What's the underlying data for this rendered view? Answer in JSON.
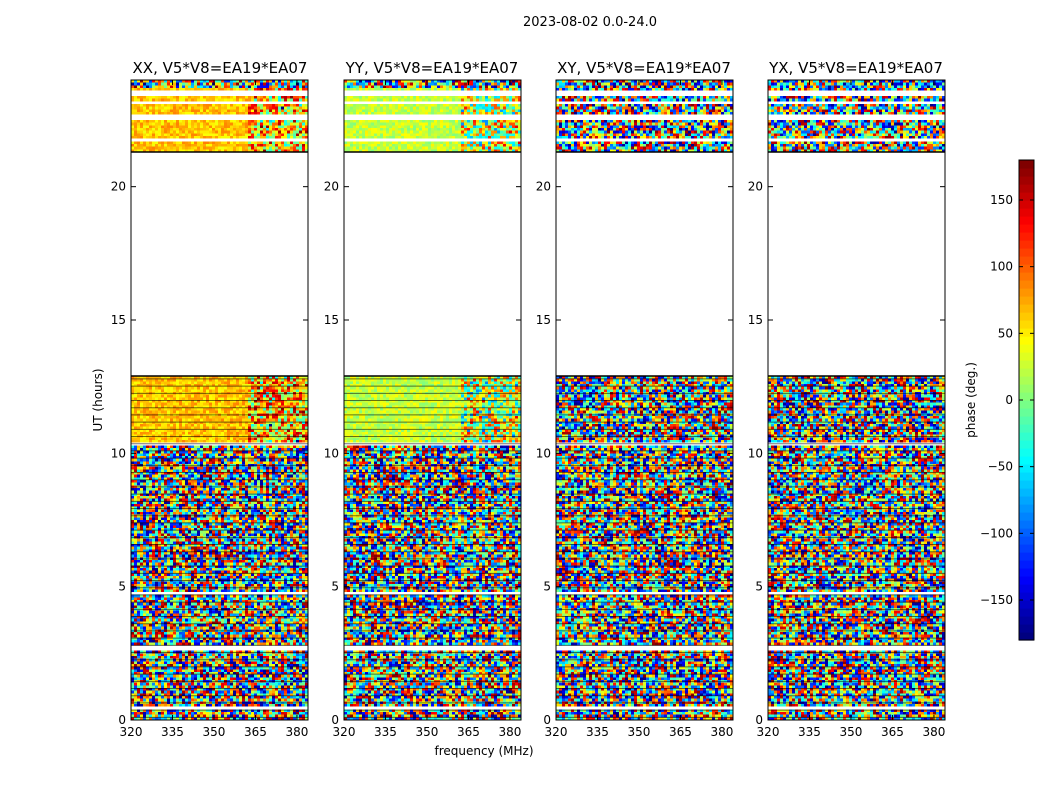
{
  "figure": {
    "suptitle": "2023-08-02 0.0-24.0"
  },
  "chart_data": {
    "type": "heatmap",
    "suptitle": "2023-08-02 0.0-24.0",
    "xlabel": "frequency (MHz)",
    "ylabel": "UT (hours)",
    "xlim": [
      320,
      384
    ],
    "ylim": [
      0,
      24
    ],
    "xticks": [
      320,
      335,
      350,
      365,
      380
    ],
    "yticks": [
      0,
      5,
      10,
      15,
      20
    ],
    "colorbar": {
      "label": "phase (deg.)",
      "range": [
        -180,
        180
      ],
      "ticks": [
        -150,
        -100,
        -50,
        0,
        50,
        100,
        150
      ],
      "tick_labels": [
        "−150",
        "−100",
        "−50",
        "0",
        "50",
        "100",
        "150"
      ],
      "colormap": "jet"
    },
    "panels": [
      {
        "title": "XX, V5*V8=EA19*EA07",
        "pol": "XX",
        "mean_phase": 65
      },
      {
        "title": "YY, V5*V8=EA19*EA07",
        "pol": "YY",
        "mean_phase": 25
      },
      {
        "title": "XY, V5*V8=EA19*EA07",
        "pol": "XY",
        "mean_phase": null
      },
      {
        "title": "YX, V5*V8=EA19*EA07",
        "pol": "YX",
        "mean_phase": null
      }
    ],
    "no_data_ranges_hours": [
      [
        12.9,
        21.3
      ]
    ],
    "blank_bands_hours": [
      [
        0.45,
        0.55
      ],
      [
        2.55,
        2.75
      ],
      [
        4.7,
        4.8
      ],
      [
        10.3,
        10.4
      ],
      [
        21.7,
        21.8
      ],
      [
        22.5,
        22.7
      ],
      [
        23.1,
        23.2
      ],
      [
        23.45,
        23.6
      ]
    ],
    "coherent_phase_blocks_hours": [
      [
        10.4,
        12.9
      ],
      [
        21.3,
        23.7
      ]
    ]
  }
}
